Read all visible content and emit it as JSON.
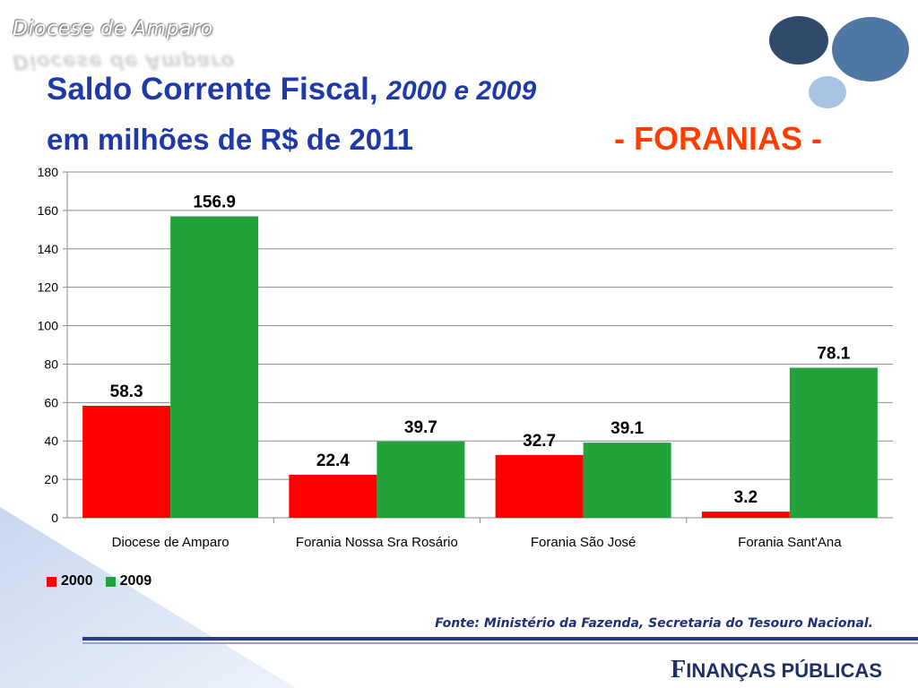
{
  "header": {
    "brand": "Diocese de Amparo",
    "title_main": "Saldo Corrente Fiscal,",
    "title_years": "2000 e 2009",
    "subtitle": "em milhões de R$ de 2011",
    "section": "- FORANIAS -"
  },
  "chart_data": {
    "type": "bar",
    "categories": [
      "Diocese de Amparo",
      "Forania Nossa Sra Rosário",
      "Forania São José",
      "Forania Sant'Ana"
    ],
    "series": [
      {
        "name": "2000",
        "color": "#ff0000",
        "values": [
          58.3,
          22.4,
          32.7,
          3.2
        ]
      },
      {
        "name": "2009",
        "color": "#22a33a",
        "values": [
          156.9,
          39.7,
          39.1,
          78.1
        ]
      }
    ],
    "title": "Saldo Corrente Fiscal, 2000 e 2009",
    "xlabel": "",
    "ylabel": "",
    "ylim": [
      0,
      180
    ],
    "yticks": [
      0,
      20,
      40,
      60,
      80,
      100,
      120,
      140,
      160,
      180
    ],
    "grid": true,
    "legend": "bottom-left"
  },
  "footer": {
    "source": "Fonte: Ministério da Fazenda, Secretaria do Tesouro Nacional.",
    "brand_initial": "F",
    "brand_rest": "INANÇAS PÚBLICAS"
  }
}
